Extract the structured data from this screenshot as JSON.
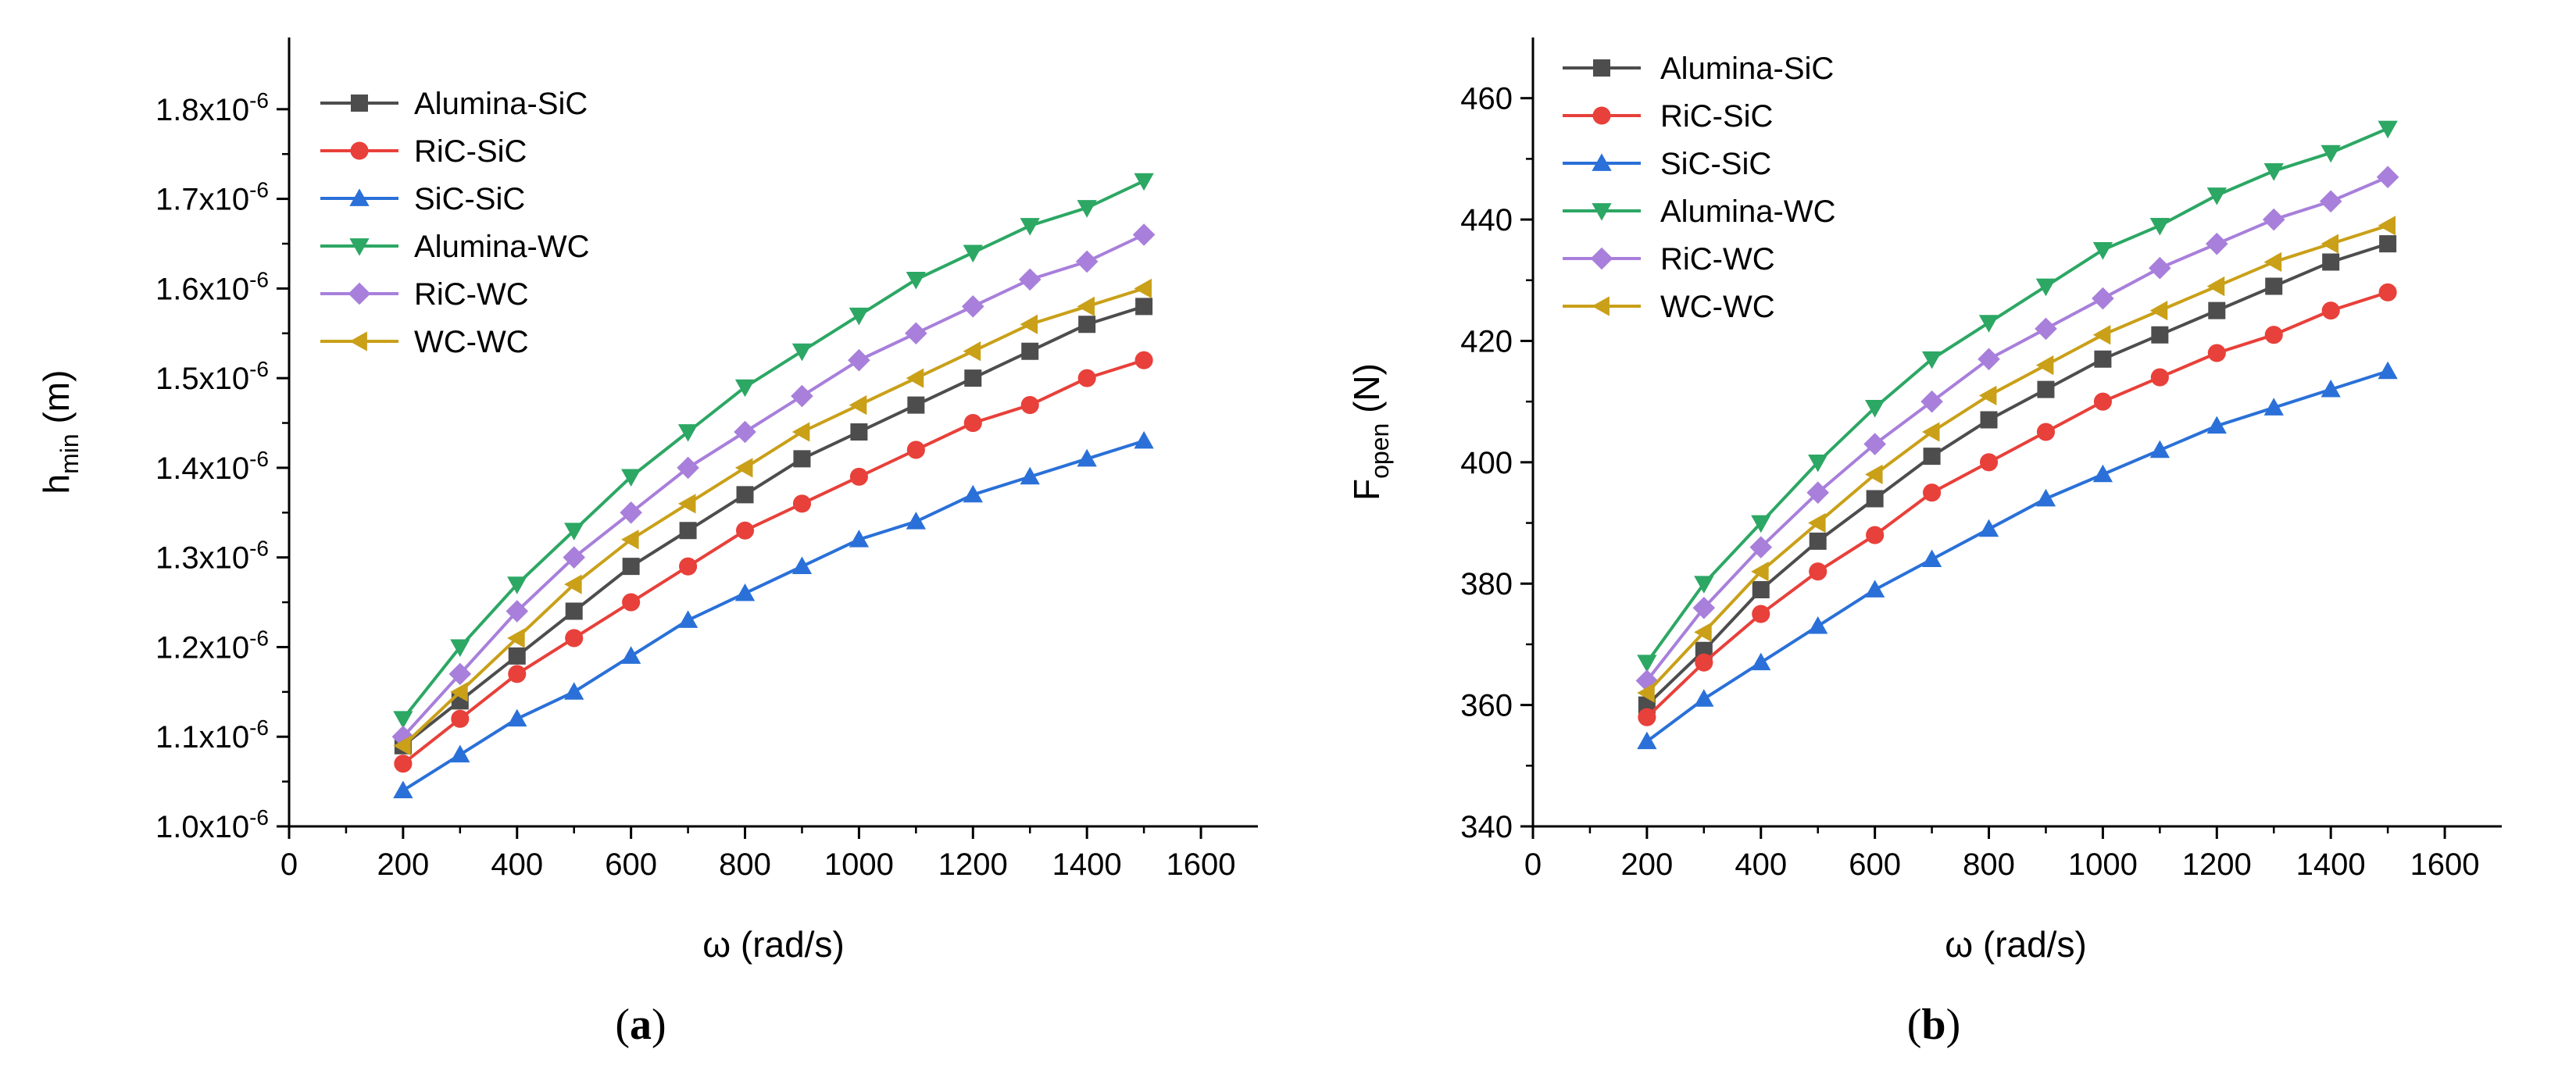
{
  "chart_data": [
    {
      "type": "line",
      "panel_label": "(a)",
      "xlabel": "ω (rad/s)",
      "ylabel": "h",
      "ylabel_sub": "min",
      "ylabel_unit": " (m)",
      "xlim": [
        0,
        1700
      ],
      "ylim": [
        1.0,
        1.88
      ],
      "x_ticks": [
        0,
        200,
        400,
        600,
        800,
        1000,
        1200,
        1400,
        1600
      ],
      "x_tick_labels": [
        "0",
        "200",
        "400",
        "600",
        "800",
        "1000",
        "1200",
        "1400",
        "1600"
      ],
      "y_ticks": [
        1.0,
        1.1,
        1.2,
        1.3,
        1.4,
        1.5,
        1.6,
        1.7,
        1.8
      ],
      "y_tick_labels": [
        "1.0x10",
        "1.1x10",
        "1.2x10",
        "1.3x10",
        "1.4x10",
        "1.5x10",
        "1.6x10",
        "1.7x10",
        "1.8x10"
      ],
      "y_tick_exponent": "-6",
      "legend_position": "top-left",
      "x": [
        200,
        300,
        400,
        500,
        600,
        700,
        800,
        900,
        1000,
        1100,
        1200,
        1300,
        1400,
        1500
      ],
      "series": [
        {
          "name": "Alumina-SiC",
          "color": "#4d4d4d",
          "marker": "square",
          "values": [
            1.09,
            1.14,
            1.19,
            1.24,
            1.29,
            1.33,
            1.37,
            1.41,
            1.44,
            1.47,
            1.5,
            1.53,
            1.56,
            1.58
          ]
        },
        {
          "name": "RiC-SiC",
          "color": "#e8403a",
          "marker": "circle",
          "values": [
            1.07,
            1.12,
            1.17,
            1.21,
            1.25,
            1.29,
            1.33,
            1.36,
            1.39,
            1.42,
            1.45,
            1.47,
            1.5,
            1.52
          ]
        },
        {
          "name": "SiC-SiC",
          "color": "#2a70d8",
          "marker": "triangle-up",
          "values": [
            1.04,
            1.08,
            1.12,
            1.15,
            1.19,
            1.23,
            1.26,
            1.29,
            1.32,
            1.34,
            1.37,
            1.39,
            1.41,
            1.43
          ]
        },
        {
          "name": "Alumina-WC",
          "color": "#2ca764",
          "marker": "triangle-down",
          "values": [
            1.12,
            1.2,
            1.27,
            1.33,
            1.39,
            1.44,
            1.49,
            1.53,
            1.57,
            1.61,
            1.64,
            1.67,
            1.69,
            1.72
          ]
        },
        {
          "name": "RiC-WC",
          "color": "#a87fdb",
          "marker": "diamond",
          "values": [
            1.1,
            1.17,
            1.24,
            1.3,
            1.35,
            1.4,
            1.44,
            1.48,
            1.52,
            1.55,
            1.58,
            1.61,
            1.63,
            1.66
          ]
        },
        {
          "name": "WC-WC",
          "color": "#c9a018",
          "marker": "triangle-left",
          "values": [
            1.09,
            1.15,
            1.21,
            1.27,
            1.32,
            1.36,
            1.4,
            1.44,
            1.47,
            1.5,
            1.53,
            1.56,
            1.58,
            1.6
          ]
        }
      ]
    },
    {
      "type": "line",
      "panel_label": "(b)",
      "xlabel": "ω (rad/s)",
      "ylabel": "F",
      "ylabel_sub": "open",
      "ylabel_unit": " (N)",
      "xlim": [
        0,
        1700
      ],
      "ylim": [
        340,
        470
      ],
      "x_ticks": [
        0,
        200,
        400,
        600,
        800,
        1000,
        1200,
        1400,
        1600
      ],
      "x_tick_labels": [
        "0",
        "200",
        "400",
        "600",
        "800",
        "1000",
        "1200",
        "1400",
        "1600"
      ],
      "y_ticks": [
        340,
        360,
        380,
        400,
        420,
        440,
        460
      ],
      "y_tick_labels": [
        "340",
        "360",
        "380",
        "400",
        "420",
        "440",
        "460"
      ],
      "legend_position": "top-left",
      "x": [
        200,
        300,
        400,
        500,
        600,
        700,
        800,
        900,
        1000,
        1100,
        1200,
        1300,
        1400,
        1500
      ],
      "series": [
        {
          "name": "Alumina-SiC",
          "color": "#4d4d4d",
          "marker": "square",
          "values": [
            360,
            369,
            379,
            387,
            394,
            401,
            407,
            412,
            417,
            421,
            425,
            429,
            433,
            436
          ]
        },
        {
          "name": "RiC-SiC",
          "color": "#e8403a",
          "marker": "circle",
          "values": [
            358,
            367,
            375,
            382,
            388,
            395,
            400,
            405,
            410,
            414,
            418,
            421,
            425,
            428
          ]
        },
        {
          "name": "SiC-SiC",
          "color": "#2a70d8",
          "marker": "triangle-up",
          "values": [
            354,
            361,
            367,
            373,
            379,
            384,
            389,
            394,
            398,
            402,
            406,
            409,
            412,
            415
          ]
        },
        {
          "name": "Alumina-WC",
          "color": "#2ca764",
          "marker": "triangle-down",
          "values": [
            367,
            380,
            390,
            400,
            409,
            417,
            423,
            429,
            435,
            439,
            444,
            448,
            451,
            455
          ]
        },
        {
          "name": "RiC-WC",
          "color": "#a87fdb",
          "marker": "diamond",
          "values": [
            364,
            376,
            386,
            395,
            403,
            410,
            417,
            422,
            427,
            432,
            436,
            440,
            443,
            447
          ]
        },
        {
          "name": "WC-WC",
          "color": "#c9a018",
          "marker": "triangle-left",
          "values": [
            362,
            372,
            382,
            390,
            398,
            405,
            411,
            416,
            421,
            425,
            429,
            433,
            436,
            439
          ]
        }
      ]
    }
  ]
}
